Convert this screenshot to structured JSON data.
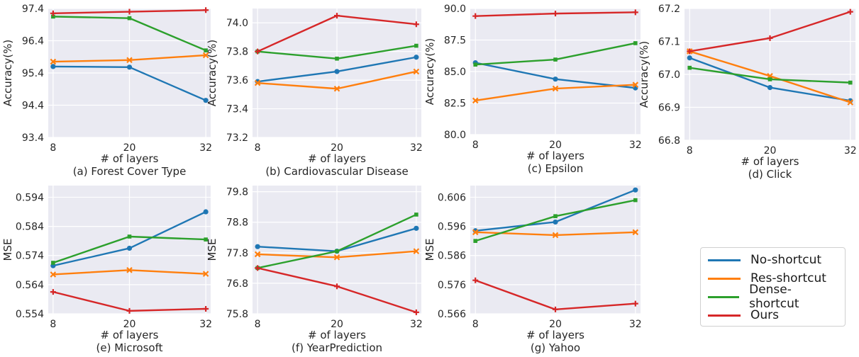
{
  "legend": [
    {
      "name": "No-shortcut",
      "color": "#1f77b4"
    },
    {
      "name": "Res-shortcut",
      "color": "#ff7f0e"
    },
    {
      "name": "Dense-shortcut",
      "color": "#2ca02c"
    },
    {
      "name": "Ours",
      "color": "#d62728"
    }
  ],
  "chart_data": [
    {
      "type": "line",
      "caption": "(a)  Forest Cover Type",
      "xlabel": "# of layers",
      "ylabel": "Accuracy(%)",
      "x": [
        8,
        20,
        32
      ],
      "xticks": [
        "8",
        "20",
        "32"
      ],
      "ylim": [
        93.4,
        97.4
      ],
      "yticks": [
        "93.4",
        "94.4",
        "95.4",
        "96.4",
        "97.4"
      ],
      "grid": true,
      "series": [
        {
          "name": "No-shortcut",
          "values": [
            95.6,
            95.58,
            94.55
          ]
        },
        {
          "name": "Res-shortcut",
          "values": [
            95.75,
            95.8,
            95.95
          ]
        },
        {
          "name": "Dense-shortcut",
          "values": [
            97.15,
            97.1,
            96.1
          ]
        },
        {
          "name": "Ours",
          "values": [
            97.25,
            97.3,
            97.35
          ]
        }
      ]
    },
    {
      "type": "line",
      "caption": "(b)  Cardiovascular Disease",
      "xlabel": "# of layers",
      "ylabel": "Accuracy(%)",
      "x": [
        8,
        20,
        32
      ],
      "xticks": [
        "8",
        "20",
        "32"
      ],
      "ylim": [
        73.2,
        74.1
      ],
      "yticks": [
        "73.2",
        "73.4",
        "73.6",
        "73.8",
        "74.0"
      ],
      "grid": true,
      "series": [
        {
          "name": "No-shortcut",
          "values": [
            73.59,
            73.66,
            73.76
          ]
        },
        {
          "name": "Res-shortcut",
          "values": [
            73.58,
            73.54,
            73.66
          ]
        },
        {
          "name": "Dense-shortcut",
          "values": [
            73.8,
            73.75,
            73.84
          ]
        },
        {
          "name": "Ours",
          "values": [
            73.8,
            74.05,
            73.99
          ]
        }
      ]
    },
    {
      "type": "line",
      "caption": "(c)  Epsilon",
      "xlabel": "# of layers",
      "ylabel": "Accuracy(%)",
      "x": [
        8,
        20,
        32
      ],
      "xticks": [
        "8",
        "20",
        "32"
      ],
      "ylim": [
        80.0,
        90.0
      ],
      "yticks": [
        "80.0",
        "82.5",
        "85.0",
        "87.5",
        "90.0"
      ],
      "grid": true,
      "series": [
        {
          "name": "No-shortcut",
          "values": [
            85.7,
            84.4,
            83.7
          ]
        },
        {
          "name": "Res-shortcut",
          "values": [
            82.7,
            83.65,
            83.95
          ]
        },
        {
          "name": "Dense-shortcut",
          "values": [
            85.55,
            85.95,
            87.25
          ]
        },
        {
          "name": "Ours",
          "values": [
            89.4,
            89.6,
            89.7
          ]
        }
      ]
    },
    {
      "type": "line",
      "caption": "(d)  Click",
      "xlabel": "# of layers",
      "ylabel": "Accuracy(%)",
      "x": [
        8,
        20,
        32
      ],
      "xticks": [
        "8",
        "20",
        "32"
      ],
      "ylim": [
        66.8,
        67.2
      ],
      "yticks": [
        "66.8",
        "66.9",
        "67.0",
        "67.1",
        "67.2"
      ],
      "grid": true,
      "series": [
        {
          "name": "No-shortcut",
          "values": [
            67.05,
            66.96,
            66.92
          ]
        },
        {
          "name": "Res-shortcut",
          "values": [
            67.07,
            66.995,
            66.915
          ]
        },
        {
          "name": "Dense-shortcut",
          "values": [
            67.02,
            66.985,
            66.975
          ]
        },
        {
          "name": "Ours",
          "values": [
            67.07,
            67.11,
            67.19
          ]
        }
      ]
    },
    {
      "type": "line",
      "caption": "(e)  Microsoft",
      "xlabel": "# of layers",
      "ylabel": "MSE",
      "x": [
        8,
        20,
        32
      ],
      "xticks": [
        "8",
        "20",
        "32"
      ],
      "ylim": [
        0.554,
        0.598
      ],
      "yticks": [
        "0.554",
        "0.564",
        "0.574",
        "0.584",
        "0.594"
      ],
      "grid": true,
      "series": [
        {
          "name": "No-shortcut",
          "values": [
            0.5705,
            0.5765,
            0.589
          ]
        },
        {
          "name": "Res-shortcut",
          "values": [
            0.5675,
            0.569,
            0.5677
          ]
        },
        {
          "name": "Dense-shortcut",
          "values": [
            0.5715,
            0.5805,
            0.5795
          ]
        },
        {
          "name": "Ours",
          "values": [
            0.5615,
            0.555,
            0.5557
          ]
        }
      ]
    },
    {
      "type": "line",
      "caption": "(f)  YearPrediction",
      "xlabel": "# of layers",
      "ylabel": "MSE",
      "x": [
        8,
        20,
        32
      ],
      "xticks": [
        "8",
        "20",
        "32"
      ],
      "ylim": [
        75.8,
        80.0
      ],
      "yticks": [
        "75.8",
        "76.8",
        "77.8",
        "78.8",
        "79.8"
      ],
      "grid": true,
      "series": [
        {
          "name": "No-shortcut",
          "values": [
            78.0,
            77.85,
            78.6
          ]
        },
        {
          "name": "Res-shortcut",
          "values": [
            77.75,
            77.65,
            77.85
          ]
        },
        {
          "name": "Dense-shortcut",
          "values": [
            77.3,
            77.85,
            79.05
          ]
        },
        {
          "name": "Ours",
          "values": [
            77.3,
            76.7,
            75.85
          ]
        }
      ]
    },
    {
      "type": "line",
      "caption": "(g)  Yahoo",
      "xlabel": "# of layers",
      "ylabel": "MSE",
      "x": [
        8,
        20,
        32
      ],
      "xticks": [
        "8",
        "20",
        "32"
      ],
      "ylim": [
        0.566,
        0.61
      ],
      "yticks": [
        "0.566",
        "0.576",
        "0.586",
        "0.596",
        "0.606"
      ],
      "grid": true,
      "series": [
        {
          "name": "No-shortcut",
          "values": [
            0.5945,
            0.5975,
            0.6085
          ]
        },
        {
          "name": "Res-shortcut",
          "values": [
            0.594,
            0.593,
            0.594
          ]
        },
        {
          "name": "Dense-shortcut",
          "values": [
            0.591,
            0.5995,
            0.605
          ]
        },
        {
          "name": "Ours",
          "values": [
            0.5775,
            0.5675,
            0.5695
          ]
        }
      ]
    }
  ]
}
